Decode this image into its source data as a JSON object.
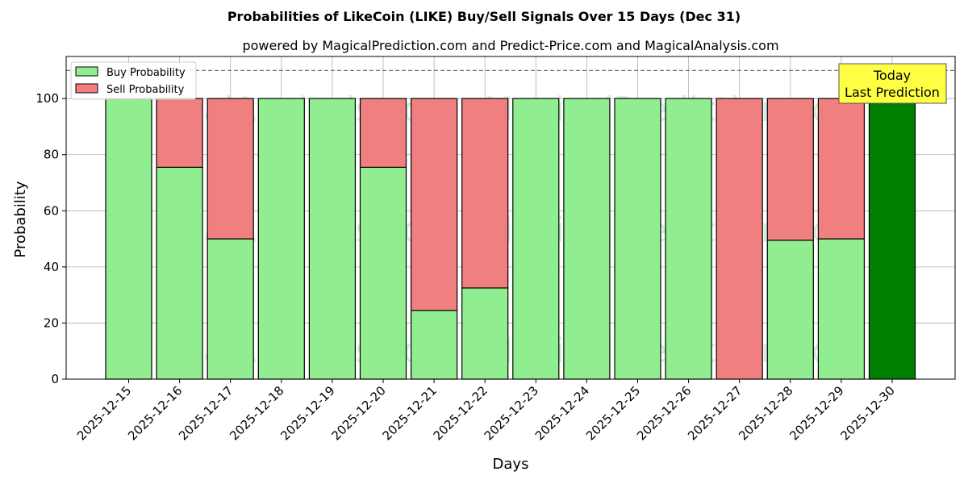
{
  "title": "Probabilities of LikeCoin (LIKE) Buy/Sell Signals Over 15 Days (Dec 31)",
  "subtitle": "powered by MagicalPrediction.com and Predict-Price.com and MagicalAnalysis.com",
  "watermarks": [
    "MagicalAnalysis.com",
    "MagicalPrediction.com"
  ],
  "annotation": {
    "line1": "Today",
    "line2": "Last Prediction"
  },
  "colors": {
    "buy": "#90ee90",
    "sell": "#f08080",
    "today": "#008000",
    "annotation_bg": "#ffff44"
  },
  "chart_data": {
    "type": "bar",
    "stacked": true,
    "xlabel": "Days",
    "ylabel": "Probability",
    "ylim": [
      0,
      115
    ],
    "yticks": [
      0,
      20,
      40,
      60,
      80,
      100
    ],
    "reference_line": 110,
    "grid": true,
    "legend_position": "top-left",
    "categories": [
      "2025-12-15",
      "2025-12-16",
      "2025-12-17",
      "2025-12-18",
      "2025-12-19",
      "2025-12-20",
      "2025-12-21",
      "2025-12-22",
      "2025-12-23",
      "2025-12-24",
      "2025-12-25",
      "2025-12-26",
      "2025-12-27",
      "2025-12-28",
      "2025-12-29",
      "2025-12-30"
    ],
    "series": [
      {
        "name": "Buy Probability",
        "values": [
          100,
          75.5,
          50,
          100,
          100,
          75.5,
          24.5,
          32.5,
          100,
          100,
          100,
          100,
          0,
          49.5,
          50,
          100
        ]
      },
      {
        "name": "Sell Probability",
        "values": [
          0,
          24.5,
          50,
          0,
          0,
          24.5,
          75.5,
          67.5,
          0,
          0,
          0,
          0,
          100,
          50.5,
          50,
          0
        ]
      }
    ]
  }
}
